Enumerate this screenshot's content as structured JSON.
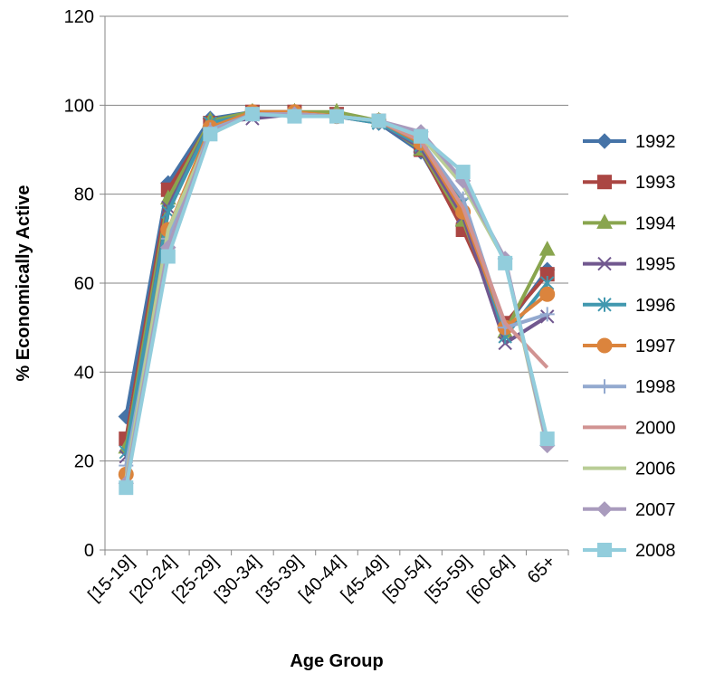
{
  "chart_data": {
    "type": "line",
    "title": "",
    "xlabel": "Age Group",
    "ylabel": "% Economically Active",
    "categories": [
      "[15-19]",
      "[20-24]",
      "[25-29]",
      "[30-34]",
      "[35-39]",
      "[40-44]",
      "[45-49]",
      "[50-54]",
      "[55-59]",
      "[60-64]",
      "65+"
    ],
    "ylim": [
      0,
      120
    ],
    "yticks": [
      "0",
      "20",
      "40",
      "60",
      "80",
      "100",
      "120"
    ],
    "grid": true,
    "legend_position": "right",
    "series": [
      {
        "name": "1992",
        "color": "#4573A7",
        "marker": "diamond",
        "values": [
          30,
          82.5,
          97,
          98.5,
          98.5,
          98,
          96,
          89.5,
          73,
          50,
          63
        ]
      },
      {
        "name": "1993",
        "color": "#AA4643",
        "marker": "square",
        "values": [
          25,
          81,
          96,
          98.5,
          98.5,
          98,
          96.5,
          90,
          72,
          51,
          62
        ]
      },
      {
        "name": "1994",
        "color": "#89A54E",
        "marker": "triangle",
        "values": [
          23,
          79,
          96.5,
          98.5,
          98.5,
          98.5,
          96.5,
          90,
          74,
          49,
          67.5
        ]
      },
      {
        "name": "1995",
        "color": "#71588F",
        "marker": "x",
        "values": [
          21,
          77,
          96,
          97,
          98,
          97.5,
          96,
          90.5,
          75,
          46.5,
          52.5
        ]
      },
      {
        "name": "1996",
        "color": "#4198AF",
        "marker": "asterisk",
        "values": [
          22,
          76,
          96,
          98,
          98,
          97.5,
          96,
          91,
          78,
          48,
          60
        ]
      },
      {
        "name": "1997",
        "color": "#DB843D",
        "marker": "circle",
        "values": [
          17,
          72,
          95,
          98.5,
          98.5,
          97.5,
          96.5,
          91.5,
          76,
          50,
          57.5
        ]
      },
      {
        "name": "1998",
        "color": "#93A9CF",
        "marker": "plus",
        "values": [
          19,
          70,
          94.5,
          98,
          98,
          97.5,
          96.5,
          92,
          79,
          50,
          53
        ]
      },
      {
        "name": "2000",
        "color": "#D19392",
        "marker": "none",
        "values": [
          16,
          68,
          94,
          98,
          98,
          97.5,
          96.5,
          92,
          77,
          51,
          41
        ]
      },
      {
        "name": "2006",
        "color": "#B9CD96",
        "marker": "none",
        "values": [
          16,
          72,
          93.5,
          98,
          98,
          97.5,
          96.5,
          93,
          82,
          65,
          23
        ]
      },
      {
        "name": "2007",
        "color": "#A99BBD",
        "marker": "diamond",
        "values": [
          15,
          68,
          94,
          98,
          98,
          97.5,
          96.5,
          94,
          83,
          65.5,
          23.5
        ]
      },
      {
        "name": "2008",
        "color": "#92CDDC",
        "marker": "square",
        "values": [
          14,
          66,
          93.5,
          98,
          97.5,
          97.5,
          96.5,
          93,
          85,
          64.5,
          25
        ]
      }
    ]
  }
}
